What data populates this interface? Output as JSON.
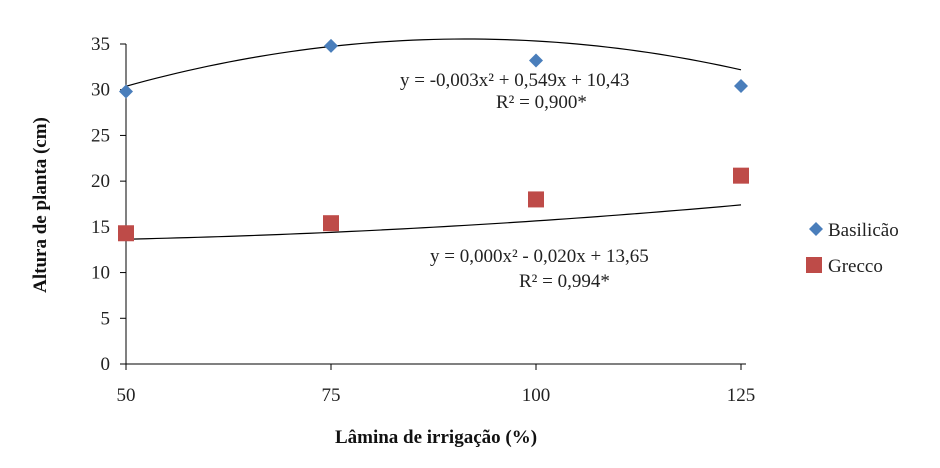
{
  "chart_data": {
    "type": "scatter",
    "xlabel": "Lâmina de irrigação (%)",
    "ylabel": "Altura de planta (cm)",
    "x_ticks": [
      "50",
      "75",
      "100",
      "125"
    ],
    "y_ticks": [
      "0",
      "5",
      "10",
      "15",
      "20",
      "25",
      "30",
      "35"
    ],
    "xlim": [
      50,
      125
    ],
    "ylim": [
      0,
      35
    ],
    "grid": false,
    "legend_position": "right",
    "x": [
      50,
      75,
      100,
      125
    ],
    "series": [
      {
        "name": "Basilicão",
        "marker": "diamond",
        "color": "#4a7ebb",
        "values": [
          29.8,
          34.8,
          33.2,
          30.4
        ],
        "trendline": {
          "type": "polynomial",
          "a": -0.003,
          "b": 0.549,
          "c": 10.43
        },
        "equation": "y = -0,003x² + 0,549x + 10,43",
        "r2": "R² = 0,900*"
      },
      {
        "name": "Grecco",
        "marker": "square",
        "color": "#be4b48",
        "values": [
          14.3,
          15.4,
          18.0,
          20.6
        ],
        "trendline": {
          "type": "polynomial",
          "a": 0.0004,
          "b": -0.02,
          "c": 13.65
        },
        "equation": "y = 0,000x² - 0,020x + 13,65",
        "r2": "R² = 0,994*"
      }
    ]
  }
}
